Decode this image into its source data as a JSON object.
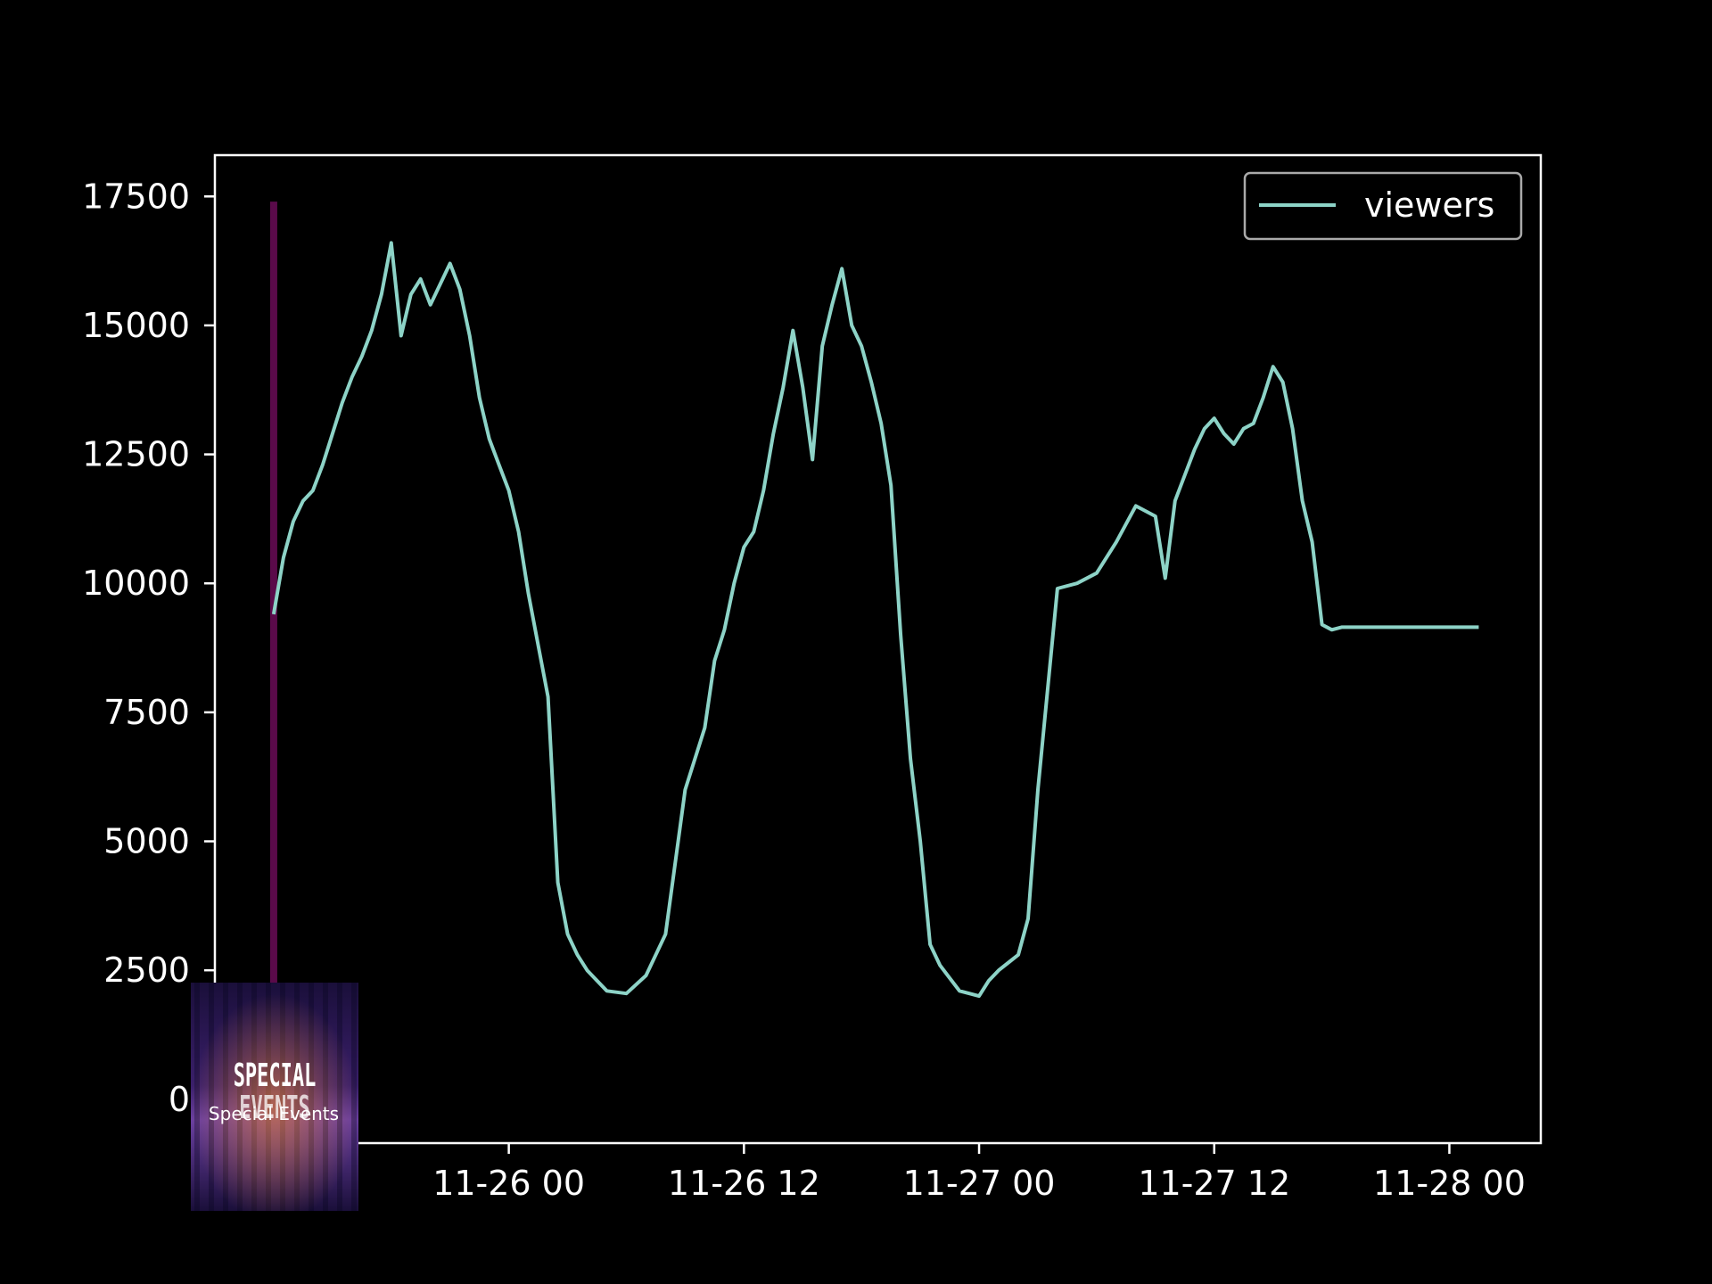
{
  "chart_data": {
    "type": "line",
    "title": "",
    "xlabel": "",
    "ylabel": "",
    "x_ticks": [
      "11-26 00",
      "11-26 12",
      "11-27 00",
      "11-27 12",
      "11-28 00"
    ],
    "x_tick_values": [
      "2023-11-26 00:00",
      "2023-11-26 12:00",
      "2023-11-27 00:00",
      "2023-11-27 12:00",
      "2023-11-28 00:00"
    ],
    "y_ticks": [
      0,
      2500,
      5000,
      7500,
      10000,
      12500,
      15000,
      17500
    ],
    "xlim": [
      "2023-11-25 09:00",
      "2023-11-28 04:40"
    ],
    "ylim": [
      -850,
      18300
    ],
    "grid": false,
    "legend": {
      "position": "top-right",
      "entries": [
        "viewers"
      ]
    },
    "series": [
      {
        "name": "viewers",
        "color": "#8dd3c7",
        "x": [
          "2023-11-25 12:00",
          "2023-11-25 12:30",
          "2023-11-25 13:00",
          "2023-11-25 13:30",
          "2023-11-25 14:00",
          "2023-11-25 14:30",
          "2023-11-25 15:00",
          "2023-11-25 15:30",
          "2023-11-25 16:00",
          "2023-11-25 16:30",
          "2023-11-25 17:00",
          "2023-11-25 17:30",
          "2023-11-25 18:00",
          "2023-11-25 18:30",
          "2023-11-25 19:00",
          "2023-11-25 19:30",
          "2023-11-25 20:00",
          "2023-11-25 20:30",
          "2023-11-25 21:00",
          "2023-11-25 21:30",
          "2023-11-25 22:00",
          "2023-11-25 22:30",
          "2023-11-25 23:00",
          "2023-11-25 23:30",
          "2023-11-26 00:00",
          "2023-11-26 00:30",
          "2023-11-26 01:00",
          "2023-11-26 01:30",
          "2023-11-26 02:00",
          "2023-11-26 02:30",
          "2023-11-26 03:00",
          "2023-11-26 03:30",
          "2023-11-26 04:00",
          "2023-11-26 05:00",
          "2023-11-26 06:00",
          "2023-11-26 07:00",
          "2023-11-26 08:00",
          "2023-11-26 09:00",
          "2023-11-26 10:00",
          "2023-11-26 10:30",
          "2023-11-26 11:00",
          "2023-11-26 11:30",
          "2023-11-26 12:00",
          "2023-11-26 12:30",
          "2023-11-26 13:00",
          "2023-11-26 13:30",
          "2023-11-26 14:00",
          "2023-11-26 14:30",
          "2023-11-26 15:00",
          "2023-11-26 15:30",
          "2023-11-26 16:00",
          "2023-11-26 16:30",
          "2023-11-26 17:00",
          "2023-11-26 17:30",
          "2023-11-26 18:00",
          "2023-11-26 18:30",
          "2023-11-26 19:00",
          "2023-11-26 19:30",
          "2023-11-26 20:00",
          "2023-11-26 20:30",
          "2023-11-26 21:00",
          "2023-11-26 21:30",
          "2023-11-26 22:00",
          "2023-11-26 22:30",
          "2023-11-26 23:00",
          "2023-11-26 23:30",
          "2023-11-27 00:00",
          "2023-11-27 00:30",
          "2023-11-27 01:00",
          "2023-11-27 01:30",
          "2023-11-27 02:00",
          "2023-11-27 02:30",
          "2023-11-27 03:00",
          "2023-11-27 04:00",
          "2023-11-27 05:00",
          "2023-11-27 06:00",
          "2023-11-27 07:00",
          "2023-11-27 08:00",
          "2023-11-27 09:00",
          "2023-11-27 09:30",
          "2023-11-27 10:00",
          "2023-11-27 10:30",
          "2023-11-27 11:00",
          "2023-11-27 11:30",
          "2023-11-27 12:00",
          "2023-11-27 12:30",
          "2023-11-27 13:00",
          "2023-11-27 13:30",
          "2023-11-27 14:00",
          "2023-11-27 14:30",
          "2023-11-27 15:00",
          "2023-11-27 15:30",
          "2023-11-27 16:00",
          "2023-11-27 16:30",
          "2023-11-27 17:00",
          "2023-11-27 17:30",
          "2023-11-27 18:00",
          "2023-11-27 18:30",
          "2023-11-27 19:00",
          "2023-11-27 19:30",
          "2023-11-27 20:00",
          "2023-11-27 20:30",
          "2023-11-27 21:00",
          "2023-11-27 21:30",
          "2023-11-27 22:00",
          "2023-11-27 22:30",
          "2023-11-27 23:00",
          "2023-11-27 23:30",
          "2023-11-28 00:00",
          "2023-11-28 00:30",
          "2023-11-28 01:00",
          "2023-11-28 01:30"
        ],
        "values": [
          9400,
          10500,
          11200,
          11600,
          11800,
          12300,
          12900,
          13500,
          14000,
          14400,
          14900,
          15600,
          16600,
          14800,
          15600,
          15900,
          15400,
          15800,
          16200,
          15700,
          14800,
          13600,
          12800,
          12300,
          11800,
          11000,
          9800,
          8800,
          7800,
          4200,
          3200,
          2800,
          2500,
          2100,
          2050,
          2400,
          3200,
          6000,
          7200,
          8500,
          9100,
          10000,
          10700,
          11000,
          11800,
          12900,
          13800,
          14900,
          13800,
          12400,
          14600,
          15400,
          16100,
          15000,
          14600,
          13900,
          13100,
          11900,
          9000,
          6600,
          5000,
          3000,
          2600,
          2350,
          2100,
          2050,
          2000,
          2300,
          2500,
          2650,
          2800,
          3500,
          6000,
          9900,
          10000,
          10200,
          10800,
          11500,
          11300,
          10100,
          11600,
          12100,
          12600,
          13000,
          13200,
          12900,
          12700,
          13000,
          13100,
          13600,
          14200,
          13900,
          13000,
          11600,
          10800,
          9200,
          9100,
          9150,
          9150,
          9150,
          9150,
          9150,
          9150,
          9150,
          9150,
          9150,
          9150,
          9150,
          9150,
          9150,
          9150,
          9150
        ]
      }
    ]
  },
  "legend_label": "viewers",
  "thumbnail": {
    "title": "SPECIAL EVENTS",
    "caption": "Special Events"
  },
  "event_marker_color": "#5a0a4a"
}
